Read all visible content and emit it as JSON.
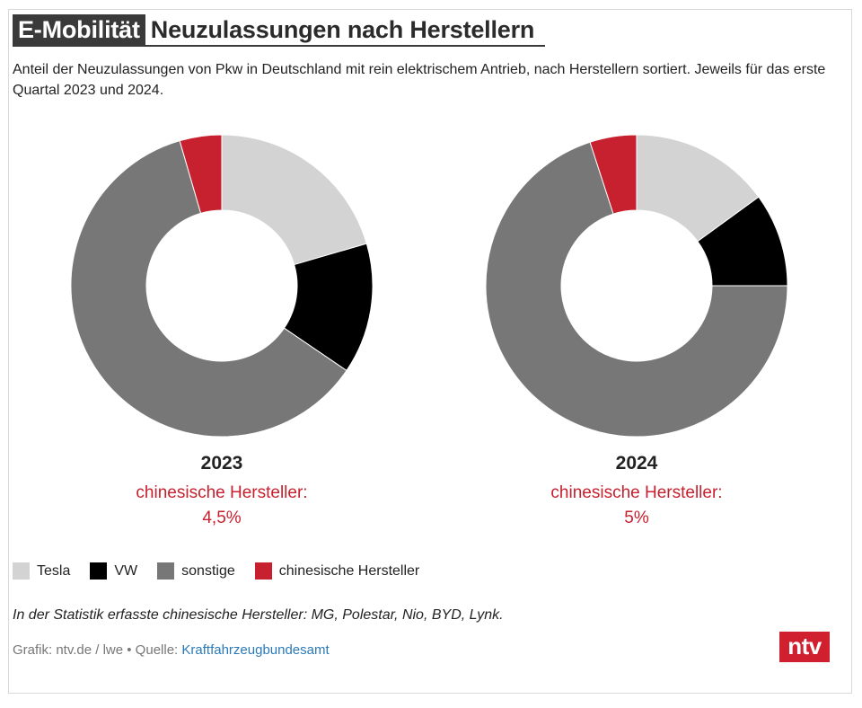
{
  "header": {
    "tag": "E-Mobilität",
    "title": "Neuzulassungen nach Herstellern",
    "subtitle": "Anteil der Neuzulassungen von Pkw in Deutschland mit rein elektrischem Antrieb, nach Herstellern sortiert. Jeweils für das erste Quartal 2023 und 2024."
  },
  "chart_data": [
    {
      "type": "pie",
      "title": "2023",
      "categories": [
        "Tesla",
        "VW",
        "sonstige",
        "chinesische Hersteller"
      ],
      "values": [
        20.5,
        14.0,
        61.0,
        4.5
      ],
      "unit": "%",
      "annotation_label": "chinesische Hersteller:",
      "annotation_value": "4,5%"
    },
    {
      "type": "pie",
      "title": "2024",
      "categories": [
        "Tesla",
        "VW",
        "sonstige",
        "chinesische Hersteller"
      ],
      "values": [
        15.0,
        10.0,
        70.0,
        5.0
      ],
      "unit": "%",
      "annotation_label": "chinesische Hersteller:",
      "annotation_value": "5%"
    }
  ],
  "colors": {
    "Tesla": "#d3d3d3",
    "VW": "#000000",
    "sonstige": "#777777",
    "chinesische Hersteller": "#c7202e"
  },
  "legend": [
    {
      "label": "Tesla",
      "color": "#d3d3d3"
    },
    {
      "label": "VW",
      "color": "#000000"
    },
    {
      "label": "sonstige",
      "color": "#777777"
    },
    {
      "label": "chinesische Hersteller",
      "color": "#c7202e"
    }
  ],
  "note": "In der Statistik erfasste chinesische Hersteller: MG, Polestar, Nio, BYD, Lynk.",
  "footer": {
    "credit": "Grafik: ntv.de / lwe • Quelle: ",
    "source_link": "Kraftfahrzeugbundesamt"
  },
  "logo": "ntv"
}
